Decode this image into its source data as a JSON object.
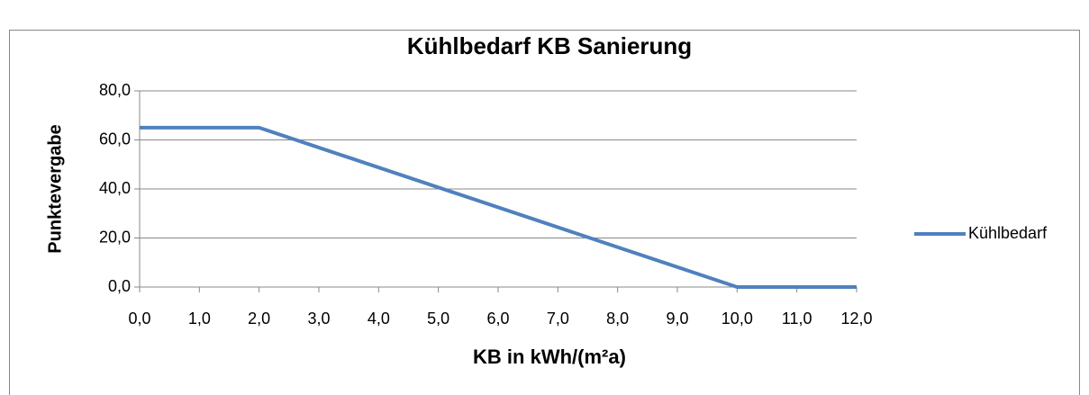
{
  "chart_data": {
    "type": "line",
    "title": "Kühlbedarf KB Sanierung",
    "xlabel": "KB in kWh/(m²a)",
    "ylabel": "Punktevergabe",
    "x": [
      0,
      2,
      10,
      12
    ],
    "series": [
      {
        "name": "Kühlbedarf",
        "color": "#4f81bd",
        "values": [
          65,
          65,
          0,
          0
        ]
      }
    ],
    "xlim": [
      0,
      12
    ],
    "xticks": [
      {
        "value": 0,
        "label": "0,0"
      },
      {
        "value": 1,
        "label": "1,0"
      },
      {
        "value": 2,
        "label": "2,0"
      },
      {
        "value": 3,
        "label": "3,0"
      },
      {
        "value": 4,
        "label": "4,0"
      },
      {
        "value": 5,
        "label": "5,0"
      },
      {
        "value": 6,
        "label": "6,0"
      },
      {
        "value": 7,
        "label": "7,0"
      },
      {
        "value": 8,
        "label": "8,0"
      },
      {
        "value": 9,
        "label": "9,0"
      },
      {
        "value": 10,
        "label": "10,0"
      },
      {
        "value": 11,
        "label": "11,0"
      },
      {
        "value": 12,
        "label": "12,0"
      }
    ],
    "ylim": [
      0,
      80
    ],
    "yticks": [
      {
        "value": 0,
        "label": "0,0"
      },
      {
        "value": 20,
        "label": "20,0"
      },
      {
        "value": 40,
        "label": "40,0"
      },
      {
        "value": 60,
        "label": "60,0"
      },
      {
        "value": 80,
        "label": "80,0"
      }
    ],
    "grid": true,
    "legend": "right"
  }
}
